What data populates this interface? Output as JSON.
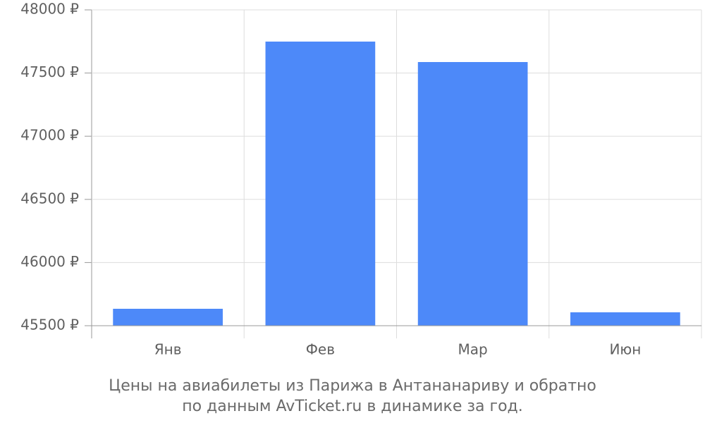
{
  "chart_data": {
    "type": "bar",
    "title": [
      "Цены на авиабилеты из Парижа в Антананариву и обратно",
      "по данным AvTicket.ru в динамике за год."
    ],
    "categories": [
      "Янв",
      "Фев",
      "Мар",
      "Июн"
    ],
    "values": [
      45634,
      47749,
      47587,
      45606
    ],
    "color": "#4d89f9",
    "ylim": [
      45500,
      48000
    ],
    "yticks": [
      {
        "value": 45500,
        "label": "45500 ₽"
      },
      {
        "value": 46000,
        "label": "46000 ₽"
      },
      {
        "value": 46500,
        "label": "46500 ₽"
      },
      {
        "value": 47000,
        "label": "47000 ₽"
      },
      {
        "value": 47500,
        "label": "47500 ₽"
      },
      {
        "value": 48000,
        "label": "48000 ₽"
      }
    ],
    "grid": true
  }
}
